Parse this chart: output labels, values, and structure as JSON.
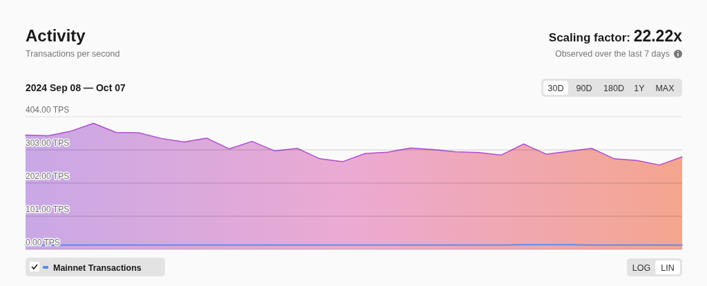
{
  "chart_data": {
    "type": "area",
    "title": "Activity",
    "subtitle": "Transactions per second",
    "annotations": [
      "Scaling factor: 22.22x",
      "Observed over the last 7 days",
      "2024 Sep 08 — Oct 07",
      "30D",
      "90D",
      "180D",
      "1Y",
      "MAX",
      "LOG",
      "LIN"
    ],
    "categories": [
      null,
      null,
      null,
      null,
      null,
      null,
      null,
      null,
      null,
      null,
      null,
      null,
      null,
      null,
      null,
      null,
      null,
      null,
      null,
      null,
      null,
      null,
      null,
      null,
      null,
      null,
      null,
      null,
      null,
      null
    ],
    "series": [
      {
        "color": "#b04ad0",
        "values": [
          348,
          346,
          360,
          384,
          356,
          355,
          338,
          327,
          339,
          306,
          329,
          300,
          308,
          276,
          267,
          292,
          296,
          309,
          304,
          297,
          295,
          287,
          321,
          290,
          299,
          308,
          276,
          271,
          257,
          282
        ]
      },
      {
        "name": "Mainnet Transactions",
        "type": "line",
        "color": "#5a8ef0",
        "values": [
          13,
          13,
          13,
          13,
          13,
          13,
          13,
          13,
          13,
          13,
          13,
          13,
          13,
          13,
          13,
          13,
          13,
          13,
          13,
          13,
          13,
          13,
          14,
          14,
          14,
          13,
          13,
          13,
          13,
          13
        ]
      }
    ],
    "ylim": [
      0,
      404
    ],
    "yticks": [
      {
        "value": 0,
        "label": "0.00 TPS"
      },
      {
        "value": 101,
        "label": "101.00 TPS"
      },
      {
        "value": 202,
        "label": "202.00 TPS"
      },
      {
        "value": 303,
        "label": "303.00 TPS"
      },
      {
        "value": 404,
        "label": "404.00 TPS"
      }
    ],
    "tick_labels": "y",
    "grid": "y",
    "legend": "bottom left",
    "marker": "none",
    "line_style": "solid"
  }
}
